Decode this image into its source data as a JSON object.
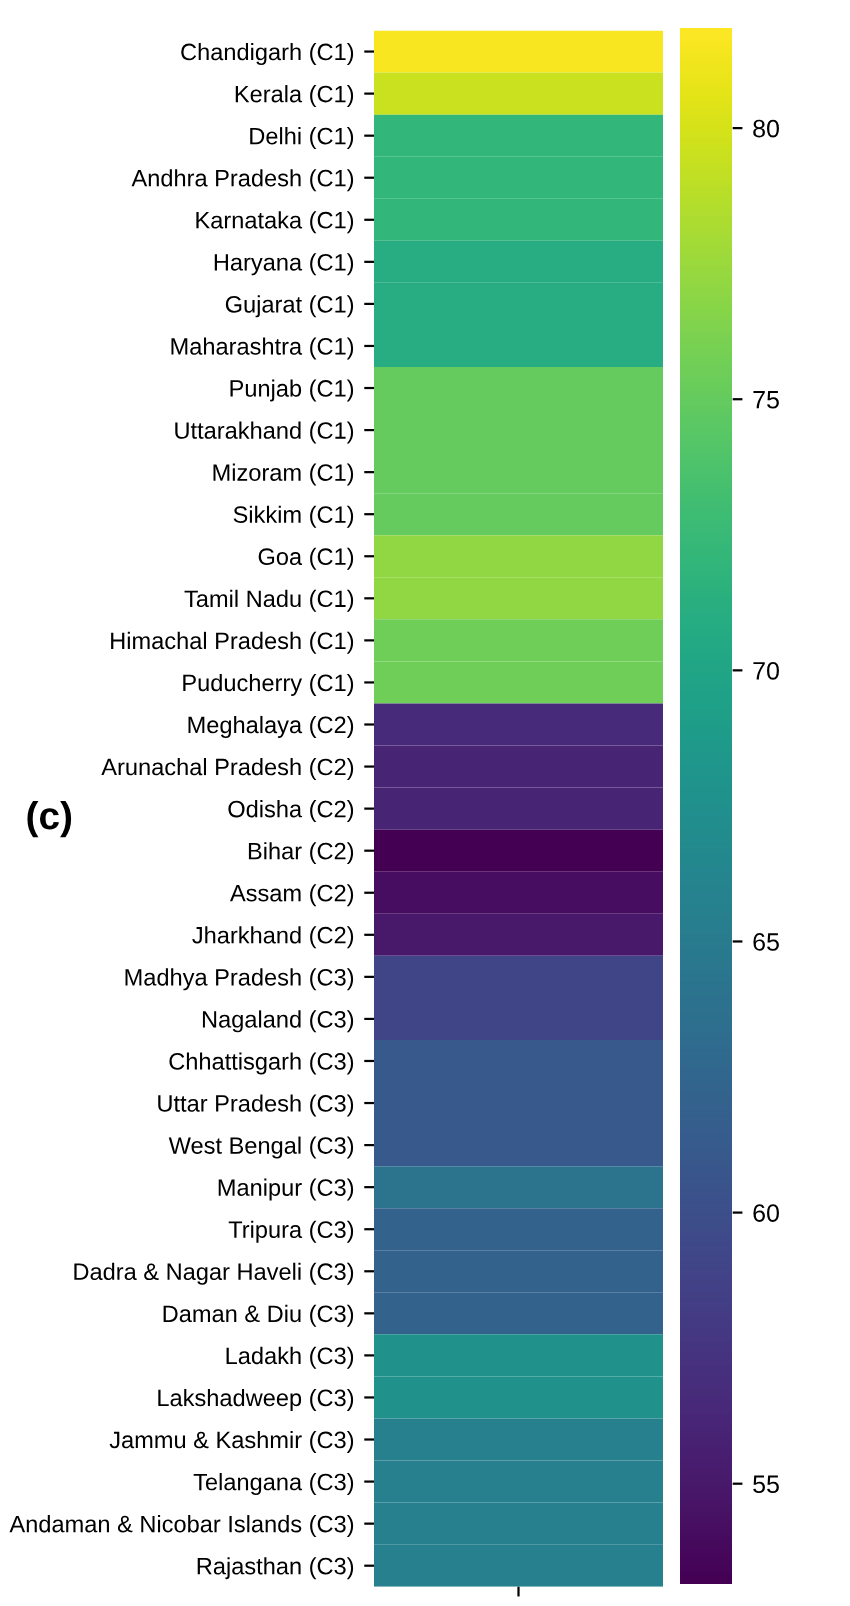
{
  "chart_data": {
    "type": "heatmap",
    "categories": [
      null
    ],
    "y_categories": [
      "Chandigarh (C1)",
      "Kerala (C1)",
      "Delhi (C1)",
      "Andhra Pradesh (C1)",
      "Karnataka (C1)",
      "Haryana (C1)",
      "Gujarat (C1)",
      "Maharashtra (C1)",
      "Punjab (C1)",
      "Uttarakhand (C1)",
      "Mizoram (C1)",
      "Sikkim (C1)",
      "Goa (C1)",
      "Tamil Nadu (C1)",
      "Himachal Pradesh (C1)",
      "Puducherry (C1)",
      "Meghalaya (C2)",
      "Arunachal Pradesh (C2)",
      "Odisha (C2)",
      "Bihar (C2)",
      "Assam (C2)",
      "Jharkhand (C2)",
      "Madhya Pradesh (C3)",
      "Nagaland (C3)",
      "Chhattisgarh (C3)",
      "Uttar Pradesh (C3)",
      "West Bengal (C3)",
      "Manipur (C3)",
      "Tripura (C3)",
      "Dadra & Nagar Haveli (C3)",
      "Daman & Diu (C3)",
      "Ladakh (C3)",
      "Lakshadweep (C3)",
      "Jammu & Kashmir (C3)",
      "Telangana (C3)",
      "Andaman & Nicobar Islands (C3)",
      "Rajasthan (C3)"
    ],
    "cells": [
      [
        81.5
      ],
      [
        79.5
      ],
      [
        72
      ],
      [
        72
      ],
      [
        72
      ],
      [
        71
      ],
      [
        71
      ],
      [
        71
      ],
      [
        75
      ],
      [
        75
      ],
      [
        75
      ],
      [
        75
      ],
      [
        77
      ],
      [
        77
      ],
      [
        75.5
      ],
      [
        75.5
      ],
      [
        56.5
      ],
      [
        56
      ],
      [
        56
      ],
      [
        53.2
      ],
      [
        54
      ],
      [
        55
      ],
      [
        59
      ],
      [
        59
      ],
      [
        61
      ],
      [
        61
      ],
      [
        61
      ],
      [
        64
      ],
      [
        62
      ],
      [
        62
      ],
      [
        62
      ],
      [
        67.5
      ],
      [
        67.5
      ],
      [
        65.5
      ],
      [
        65.5
      ],
      [
        65.5
      ],
      [
        65.5
      ]
    ],
    "clim": [
      53.1,
      81.8
    ],
    "cticks": [
      55,
      60,
      65,
      70,
      75,
      80
    ],
    "annotations": [
      "(c)"
    ]
  }
}
